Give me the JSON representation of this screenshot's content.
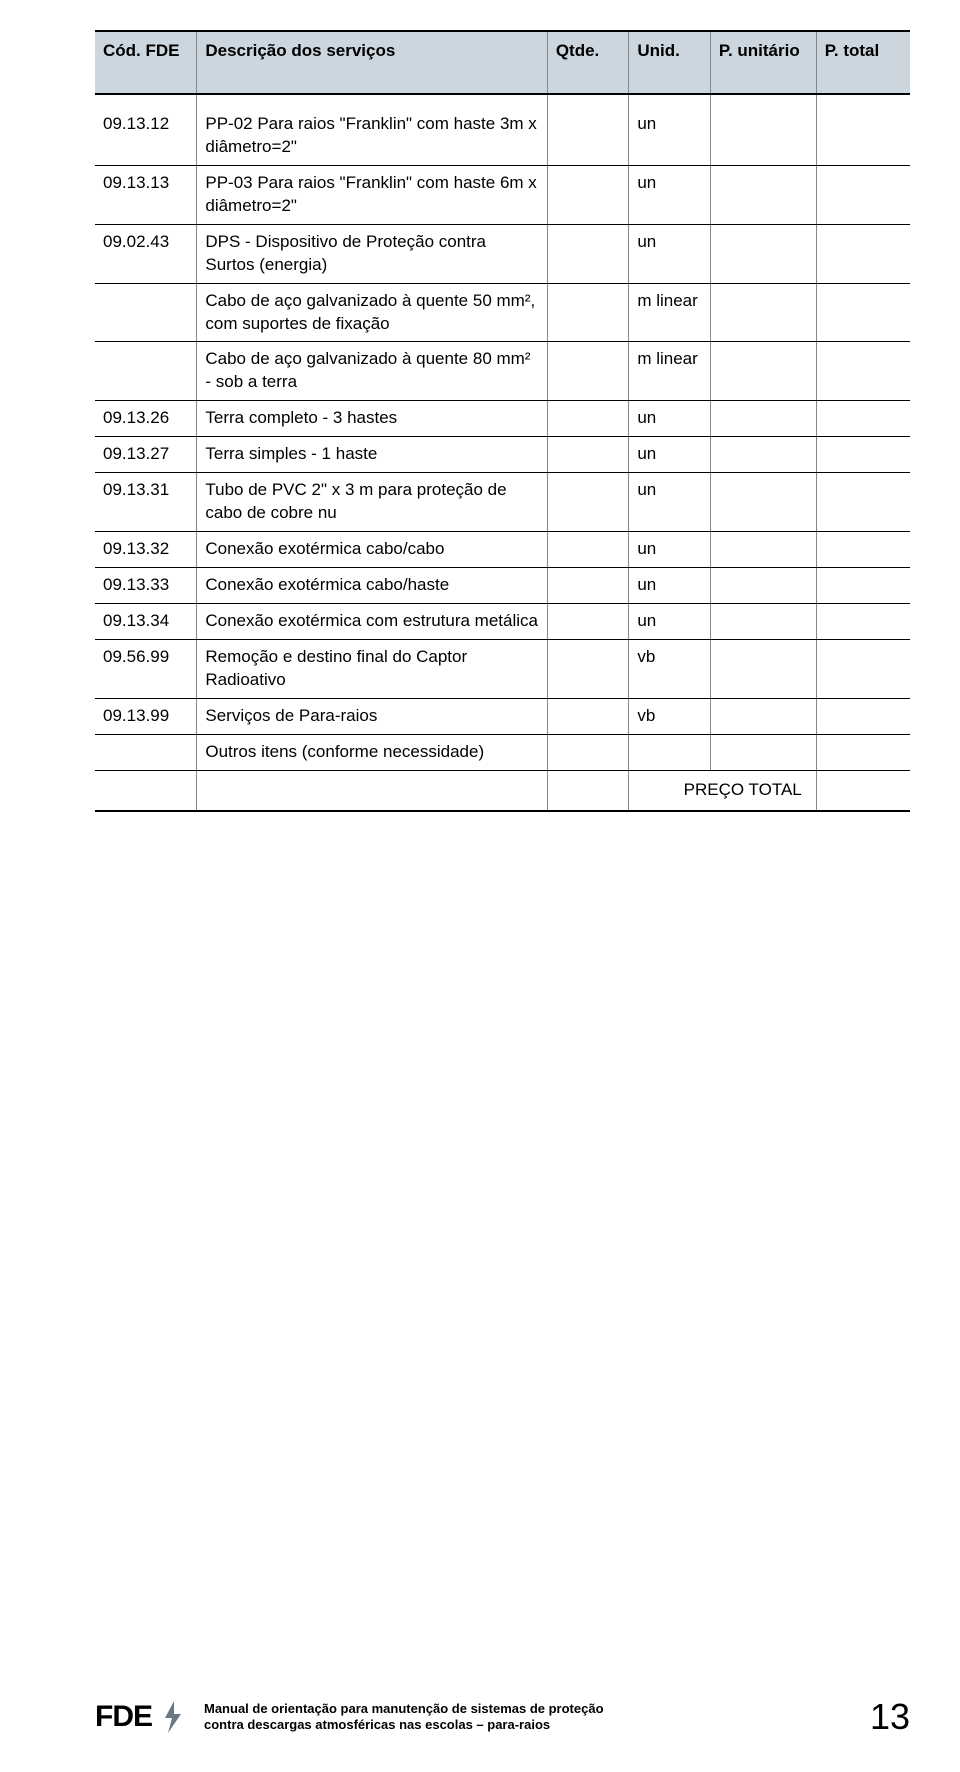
{
  "colors": {
    "header_bg": "#cbd6de",
    "border_dark": "#000000",
    "border_light": "#888888",
    "bolt": "#6b7785"
  },
  "table": {
    "headers": {
      "cod": "Cód. FDE",
      "desc": "Descrição dos serviços",
      "qtde": "Qtde.",
      "unid": "Unid.",
      "punit": "P. unitário",
      "ptotal": "P. total"
    },
    "rows": [
      {
        "cod": "09.13.12",
        "desc": "PP-02 Para raios \"Franklin\" com haste 3m x diâmetro=2\"",
        "unid": "un"
      },
      {
        "cod": "09.13.13",
        "desc": "PP-03 Para raios \"Franklin\" com haste 6m x diâmetro=2\"",
        "unid": "un"
      },
      {
        "cod": "09.02.43",
        "desc": "DPS - Dispositivo de Proteção contra Surtos (energia)",
        "unid": "un"
      },
      {
        "cod": "",
        "desc": "Cabo de aço galvanizado à quente 50 mm², com suportes de fixação",
        "unid": "m linear"
      },
      {
        "cod": "",
        "desc": "Cabo de aço galvanizado à quente 80 mm² - sob a terra",
        "unid": "m linear"
      },
      {
        "cod": "09.13.26",
        "desc": "Terra completo - 3 hastes",
        "unid": "un"
      },
      {
        "cod": "09.13.27",
        "desc": "Terra simples - 1 haste",
        "unid": "un"
      },
      {
        "cod": "09.13.31",
        "desc": "Tubo de PVC 2\" x 3 m para proteção de cabo de cobre nu",
        "unid": "un"
      },
      {
        "cod": "09.13.32",
        "desc": "Conexão exotérmica cabo/cabo",
        "unid": "un"
      },
      {
        "cod": "09.13.33",
        "desc": "Conexão exotérmica cabo/haste",
        "unid": "un"
      },
      {
        "cod": "09.13.34",
        "desc": "Conexão exotérmica com estrutura metálica",
        "unid": "un"
      },
      {
        "cod": "09.56.99",
        "desc": "Remoção e destino final do Captor Radioativo",
        "unid": "vb"
      },
      {
        "cod": "09.13.99",
        "desc": "Serviços de Para-raios",
        "unid": "vb"
      },
      {
        "cod": "",
        "desc": "Outros itens (conforme necessidade)",
        "unid": ""
      }
    ],
    "total_label": "PREÇO TOTAL"
  },
  "footer": {
    "logo": "FDE",
    "line1": "Manual de orientação para manutenção de sistemas de proteção",
    "line2": "contra descargas atmosféricas nas escolas – para-raios",
    "page_number": "13"
  }
}
